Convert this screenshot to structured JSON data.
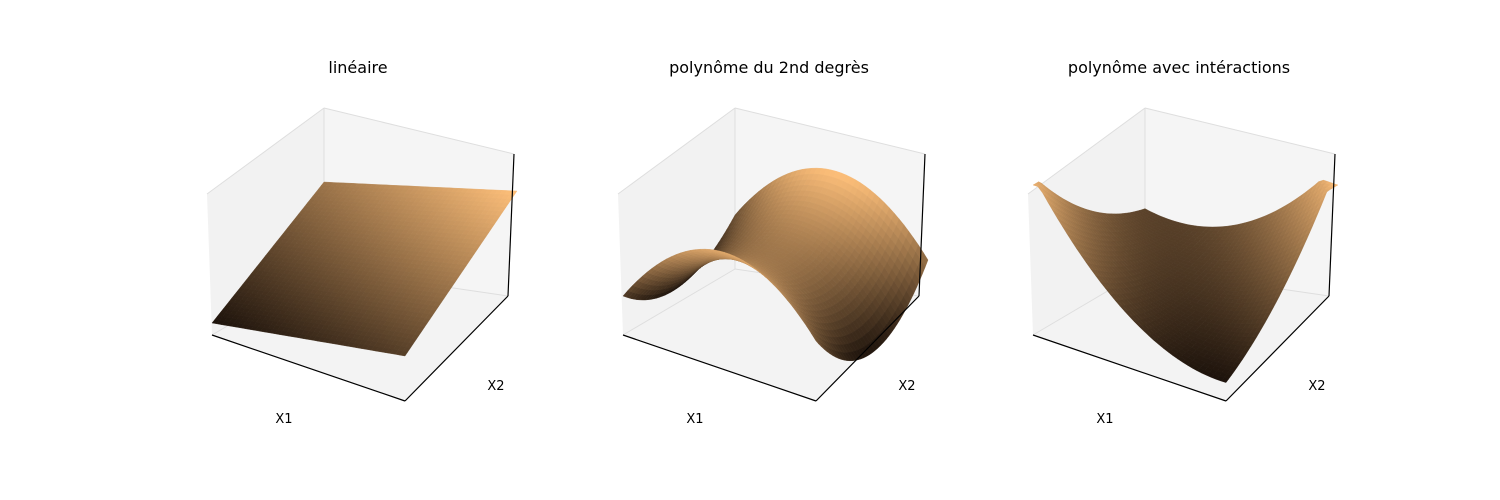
{
  "chart_data": [
    {
      "type": "surface",
      "title": "linéaire",
      "xlabel": "X1",
      "ylabel": "X2",
      "zlabel": "",
      "colormap": "copper",
      "ticks_visible": false,
      "surface": "plane"
    },
    {
      "type": "surface",
      "title": "polynôme du 2nd degrès",
      "xlabel": "X1",
      "ylabel": "X2",
      "zlabel": "",
      "colormap": "copper",
      "ticks_visible": false,
      "surface": "saddle"
    },
    {
      "type": "surface",
      "title": "polynôme avec intéractions",
      "xlabel": "X1",
      "ylabel": "X2",
      "zlabel": "",
      "colormap": "copper",
      "ticks_visible": false,
      "surface": "bowl"
    }
  ],
  "colors": {
    "surface_dark": "#1c120b",
    "surface_light": "#ffc07a",
    "background": "#ffffff"
  }
}
